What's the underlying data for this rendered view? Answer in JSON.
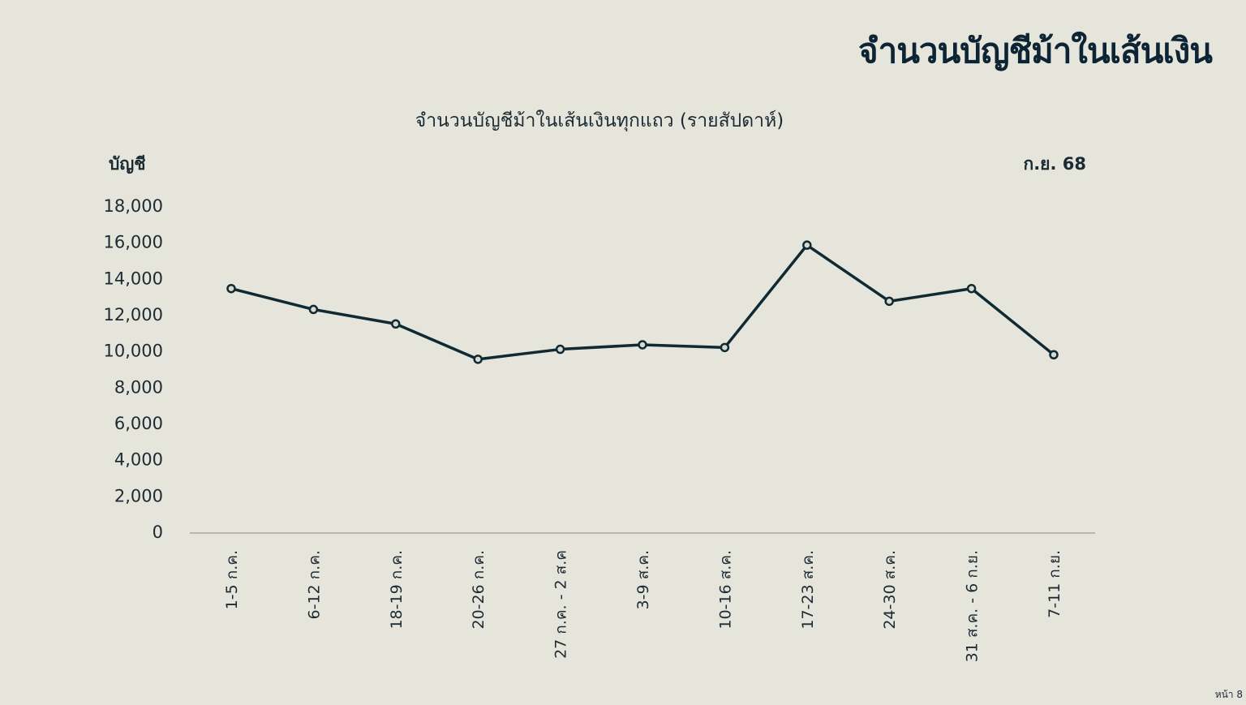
{
  "slide": {
    "title": "จำนวนบัญชีม้าในเส้นเงิน",
    "page_number": "หน้า 8"
  },
  "colors": {
    "background": "#e6e5dc",
    "line": "#0f2a33",
    "text": "#1c2b33",
    "title": "#0c2433"
  },
  "chart_data": {
    "type": "line",
    "title": "จำนวนบัญชีม้าในเส้นเงินทุกแถว (รายสัปดาห์)",
    "ylabel": "บัญชี",
    "annotation": "ก.ย. 68",
    "ylim": [
      0,
      18000
    ],
    "yticks": [
      0,
      2000,
      4000,
      6000,
      8000,
      10000,
      12000,
      14000,
      16000,
      18000
    ],
    "ytick_labels": [
      "0",
      "2,000",
      "4,000",
      "6,000",
      "8,000",
      "10,000",
      "12,000",
      "14,000",
      "16,000",
      "18,000"
    ],
    "grid": false,
    "legend": "none",
    "categories": [
      "1-5 ก.ค.",
      "6-12 ก.ค.",
      "18-19 ก.ค.",
      "20-26 ก.ค.",
      "27 ก.ค. - 2 ส.ค",
      "3-9 ส.ค.",
      "10-16 ส.ค.",
      "17-23 ส.ค.",
      "24-30 ส.ค.",
      "31 ส.ค. - 6 ก.ย.",
      "7-11 ก.ย."
    ],
    "series": [
      {
        "values": [
          13400,
          12250,
          11450,
          9500,
          10050,
          10300,
          10150,
          15800,
          12700,
          13400,
          9750
        ]
      }
    ]
  }
}
